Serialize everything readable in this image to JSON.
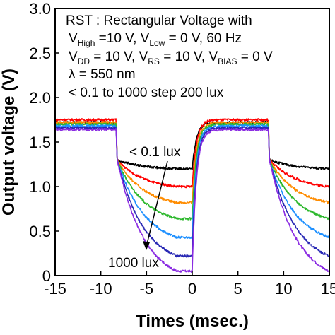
{
  "chart_data": {
    "type": "line",
    "xlabel": "Times (msec.)",
    "ylabel": "Output voltage (V)",
    "xlim": [
      -15,
      15
    ],
    "ylim": [
      0,
      3.0
    ],
    "xticks": [
      "-15",
      "-10",
      "-5",
      "0",
      "5",
      "10",
      "15"
    ],
    "yticks": [
      "0",
      "0.5",
      "1.0",
      "1.5",
      "2.0",
      "2.5",
      "3.0"
    ],
    "grid": false,
    "legend_box": {
      "line1": "RST : Rectangular Voltage with",
      "line2": {
        "v": "V",
        "high_sub": "High",
        "p1": " =10 V, V",
        "low_sub": "Low",
        "p2": " = 0 V, 60 Hz"
      },
      "line3": {
        "v": "V",
        "dd_sub": "DD",
        "p1": " = 10 V, V",
        "rs_sub": "RS",
        "p2": " = 10 V, V",
        "bias_sub": "BIAS",
        "p3": " = 0 V"
      },
      "line4": "λ = 550 nm",
      "line5": "< 0.1 to 1000 step 200 lux"
    },
    "annotations": {
      "low_light": "< 0.1 lux",
      "high_light": "1000 lux"
    },
    "high_state_windows": [
      [
        -15,
        -8.33
      ],
      [
        0,
        8.33
      ]
    ],
    "series": [
      {
        "color": "#000000",
        "high": 1.72,
        "end": 1.2,
        "knee": 1.3
      },
      {
        "color": "#ff0000",
        "high": 1.75,
        "end": 1.0,
        "knee": 1.3
      },
      {
        "color": "#ff8c00",
        "high": 1.72,
        "end": 0.82,
        "knee": 1.3
      },
      {
        "color": "#2db82d",
        "high": 1.7,
        "end": 0.64,
        "knee": 1.3
      },
      {
        "color": "#1e90ff",
        "high": 1.68,
        "end": 0.43,
        "knee": 1.3
      },
      {
        "color": "#2828b4",
        "high": 1.66,
        "end": 0.22,
        "knee": 1.3
      },
      {
        "color": "#8a2be2",
        "high": 1.64,
        "end": 0.05,
        "knee": 1.3
      }
    ]
  }
}
